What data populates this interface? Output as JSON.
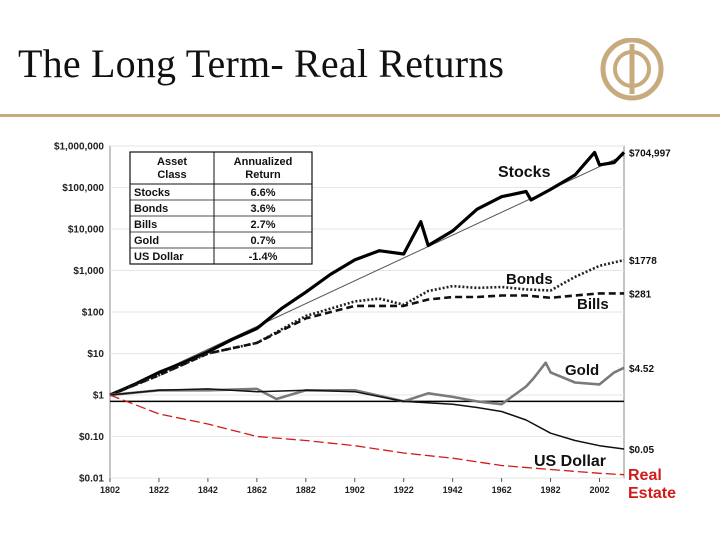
{
  "title": "The Long Term- Real Returns",
  "colors": {
    "accent_gold": "#c7ab7f",
    "stocks": "#000000",
    "bonds": "#222222",
    "bills": "#111111",
    "gold": "#7a7a7a",
    "usdollar": "#111111",
    "realestate": "#d11b1b",
    "trend": "#555555"
  },
  "chart_data": {
    "type": "line",
    "title": "",
    "xlabel": "",
    "ylabel": "",
    "y_scale": "log",
    "ylim": [
      0.01,
      1000000
    ],
    "xlim": [
      1802,
      2012
    ],
    "x_ticks": [
      "1802",
      "1822",
      "1842",
      "1862",
      "1882",
      "1902",
      "1922",
      "1942",
      "1962",
      "1982",
      "2002"
    ],
    "y_ticks": [
      {
        "value": 1000000,
        "label": "$1,000,000"
      },
      {
        "value": 100000,
        "label": "$100,000"
      },
      {
        "value": 10000,
        "label": "$10,000"
      },
      {
        "value": 1000,
        "label": "$1,000"
      },
      {
        "value": 100,
        "label": "$100"
      },
      {
        "value": 10,
        "label": "$10"
      },
      {
        "value": 1,
        "label": "$1"
      },
      {
        "value": 0.1,
        "label": "$0.10"
      },
      {
        "value": 0.01,
        "label": "$0.01"
      }
    ],
    "table": {
      "headers": [
        "Asset Class",
        "Annualized Return"
      ],
      "rows": [
        [
          "Stocks",
          "6.6%"
        ],
        [
          "Bonds",
          "3.6%"
        ],
        [
          "Bills",
          "2.7%"
        ],
        [
          "Gold",
          "0.7%"
        ],
        [
          "US Dollar",
          "-1.4%"
        ]
      ]
    },
    "series": [
      {
        "name": "Stocks",
        "label": "Stocks",
        "end_label": "$704,997",
        "style": "solid-thick",
        "x": [
          1802,
          1812,
          1822,
          1832,
          1842,
          1852,
          1862,
          1872,
          1882,
          1892,
          1902,
          1912,
          1922,
          1929,
          1932,
          1942,
          1952,
          1962,
          1972,
          1974,
          1982,
          1992,
          2000,
          2002,
          2008,
          2012
        ],
        "y": [
          1,
          1.8,
          3.5,
          6,
          11,
          22,
          40,
          120,
          300,
          800,
          1800,
          3000,
          2500,
          15000,
          4000,
          9000,
          30000,
          60000,
          80000,
          50000,
          90000,
          200000,
          700000,
          350000,
          400000,
          704997
        ]
      },
      {
        "name": "Bonds",
        "label": "Bonds",
        "end_label": "$1778",
        "style": "dotted",
        "x": [
          1802,
          1822,
          1842,
          1862,
          1882,
          1902,
          1912,
          1922,
          1932,
          1942,
          1952,
          1962,
          1972,
          1982,
          1992,
          2002,
          2012
        ],
        "y": [
          1,
          3,
          10,
          18,
          80,
          180,
          210,
          150,
          320,
          420,
          380,
          400,
          350,
          330,
          700,
          1300,
          1778
        ]
      },
      {
        "name": "Bills",
        "label": "Bills",
        "end_label": "$281",
        "style": "dashed",
        "x": [
          1802,
          1822,
          1842,
          1862,
          1882,
          1902,
          1922,
          1932,
          1942,
          1952,
          1962,
          1972,
          1982,
          1992,
          2002,
          2012
        ],
        "y": [
          1,
          3,
          10,
          18,
          70,
          140,
          140,
          200,
          230,
          230,
          250,
          250,
          220,
          250,
          280,
          281
        ]
      },
      {
        "name": "Gold",
        "label": "Gold",
        "end_label": "$4.52",
        "style": "solid-gray",
        "x": [
          1802,
          1822,
          1842,
          1862,
          1870,
          1882,
          1902,
          1922,
          1932,
          1942,
          1952,
          1962,
          1972,
          1975,
          1980,
          1982,
          1992,
          2002,
          2008,
          2012
        ],
        "y": [
          1,
          1.3,
          1.3,
          1.4,
          0.8,
          1.3,
          1.3,
          0.7,
          1.1,
          0.9,
          0.7,
          0.6,
          1.6,
          2.5,
          6,
          3.5,
          2,
          1.8,
          3.5,
          4.52
        ]
      },
      {
        "name": "US Dollar",
        "label": "US Dollar",
        "end_label": "$0.05",
        "style": "solid",
        "x": [
          1802,
          1822,
          1842,
          1862,
          1882,
          1902,
          1922,
          1942,
          1952,
          1962,
          1972,
          1982,
          1992,
          2002,
          2012
        ],
        "y": [
          1,
          1.3,
          1.4,
          1.2,
          1.3,
          1.2,
          0.7,
          0.6,
          0.5,
          0.4,
          0.25,
          0.12,
          0.08,
          0.06,
          0.05
        ]
      },
      {
        "name": "Real Estate",
        "label": "Real Estate",
        "end_label": "",
        "style": "dashed-red",
        "x": [
          1802,
          1822,
          1842,
          1862,
          1882,
          1902,
          1922,
          1942,
          1962,
          1982,
          2002,
          2012
        ],
        "y": [
          1,
          0.35,
          0.2,
          0.1,
          0.08,
          0.06,
          0.04,
          0.03,
          0.02,
          0.016,
          0.013,
          0.012
        ]
      }
    ],
    "reference_lines": [
      {
        "name": "Stocks trend",
        "type": "trend",
        "x": [
          1802,
          2012
        ],
        "y": [
          1,
          600000
        ]
      },
      {
        "name": "Base $1 line",
        "type": "hline",
        "x": [
          1802,
          2012
        ],
        "y": [
          0.7,
          0.7
        ]
      }
    ]
  }
}
